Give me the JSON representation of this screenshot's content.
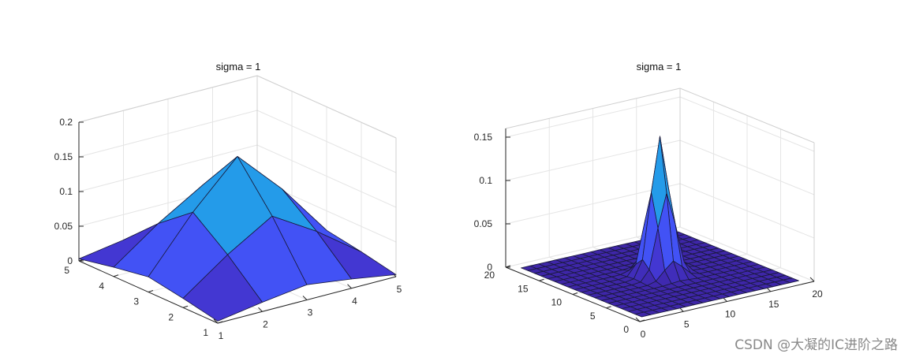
{
  "watermark": "CSDN @大凝的IC进阶之路",
  "colors": {
    "grid": "#e5e5e5",
    "axis": "#262626",
    "edge": "#1a1a3a",
    "colormap": [
      "#3e26a8",
      "#4745f4",
      "#2e87f7",
      "#1caadf",
      "#40c47a"
    ]
  },
  "chart_data": [
    {
      "type": "surface",
      "title": "sigma = 1",
      "x_ticks": [
        "1",
        "2",
        "3",
        "4",
        "5"
      ],
      "y_ticks": [
        "1",
        "2",
        "3",
        "4",
        "5"
      ],
      "z_ticks": [
        "0",
        "0.05",
        "0.1",
        "0.15",
        "0.2"
      ],
      "xlim": [
        1,
        5
      ],
      "ylim": [
        1,
        5
      ],
      "zlim": [
        0,
        0.2
      ],
      "grid": true,
      "z": [
        [
          0.003,
          0.0133,
          0.0219,
          0.0133,
          0.003
        ],
        [
          0.0133,
          0.0596,
          0.0983,
          0.0596,
          0.0133
        ],
        [
          0.0219,
          0.0983,
          0.1621,
          0.0983,
          0.0219
        ],
        [
          0.0133,
          0.0596,
          0.0983,
          0.0596,
          0.0133
        ],
        [
          0.003,
          0.0133,
          0.0219,
          0.0133,
          0.003
        ]
      ]
    },
    {
      "type": "surface",
      "title": "sigma = 1",
      "x_ticks": [
        "0",
        "5",
        "10",
        "15",
        "20"
      ],
      "y_ticks": [
        "0",
        "5",
        "10",
        "15",
        "20"
      ],
      "z_ticks": [
        "0",
        "0.05",
        "0.1",
        "0.15"
      ],
      "xlim": [
        0,
        20
      ],
      "ylim": [
        0,
        20
      ],
      "zlim": [
        0,
        0.16
      ],
      "grid": true,
      "x_range": [
        1,
        19
      ],
      "y_range": [
        1,
        19
      ],
      "center": [
        10,
        10
      ],
      "sigma": 1,
      "peak": 0.1592
    }
  ]
}
